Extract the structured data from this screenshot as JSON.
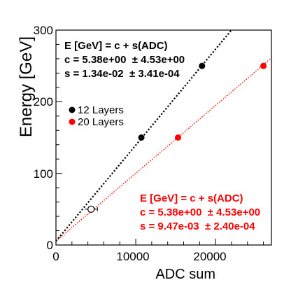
{
  "chart_data": {
    "type": "scatter",
    "xlabel": "ADC sum",
    "ylabel": "Energy [GeV]",
    "xlim": [
      0,
      27000
    ],
    "ylim": [
      0,
      300
    ],
    "xticks": [
      0,
      10000,
      20000
    ],
    "yticks": [
      0,
      100,
      200,
      300
    ],
    "xtick_labels": [
      "0",
      "10000",
      "20000"
    ],
    "ytick_labels": [
      "0",
      "100",
      "200",
      "300"
    ],
    "legend_position": "upper-left",
    "series": [
      {
        "name": "12 Layers",
        "color": "#000000",
        "points": [
          {
            "x": 10700,
            "y": 150
          },
          {
            "x": 18300,
            "y": 250
          }
        ],
        "open_points": [
          {
            "x": 4400,
            "y": 50,
            "xerr": 800
          }
        ],
        "fit": {
          "c": 5.38,
          "s": 0.0134,
          "style": "dotted"
        },
        "fit_text": [
          "E [GeV] = c + s(ADC)",
          "c = 5.38e+00  ± 4.53e+00",
          "s = 1.34e-02  ± 3.41e-04"
        ]
      },
      {
        "name": "20 Layers",
        "color": "#ff0000",
        "points": [
          {
            "x": 15300,
            "y": 150
          },
          {
            "x": 26000,
            "y": 250
          }
        ],
        "fit": {
          "c": 5.38,
          "s": 0.00947,
          "style": "dotted"
        },
        "fit_text": [
          "E [GeV] = c + s(ADC)",
          "c = 5.38e+00  ± 4.53e+00",
          "s = 9.47e-03  ± 2.40e-04"
        ]
      }
    ]
  }
}
